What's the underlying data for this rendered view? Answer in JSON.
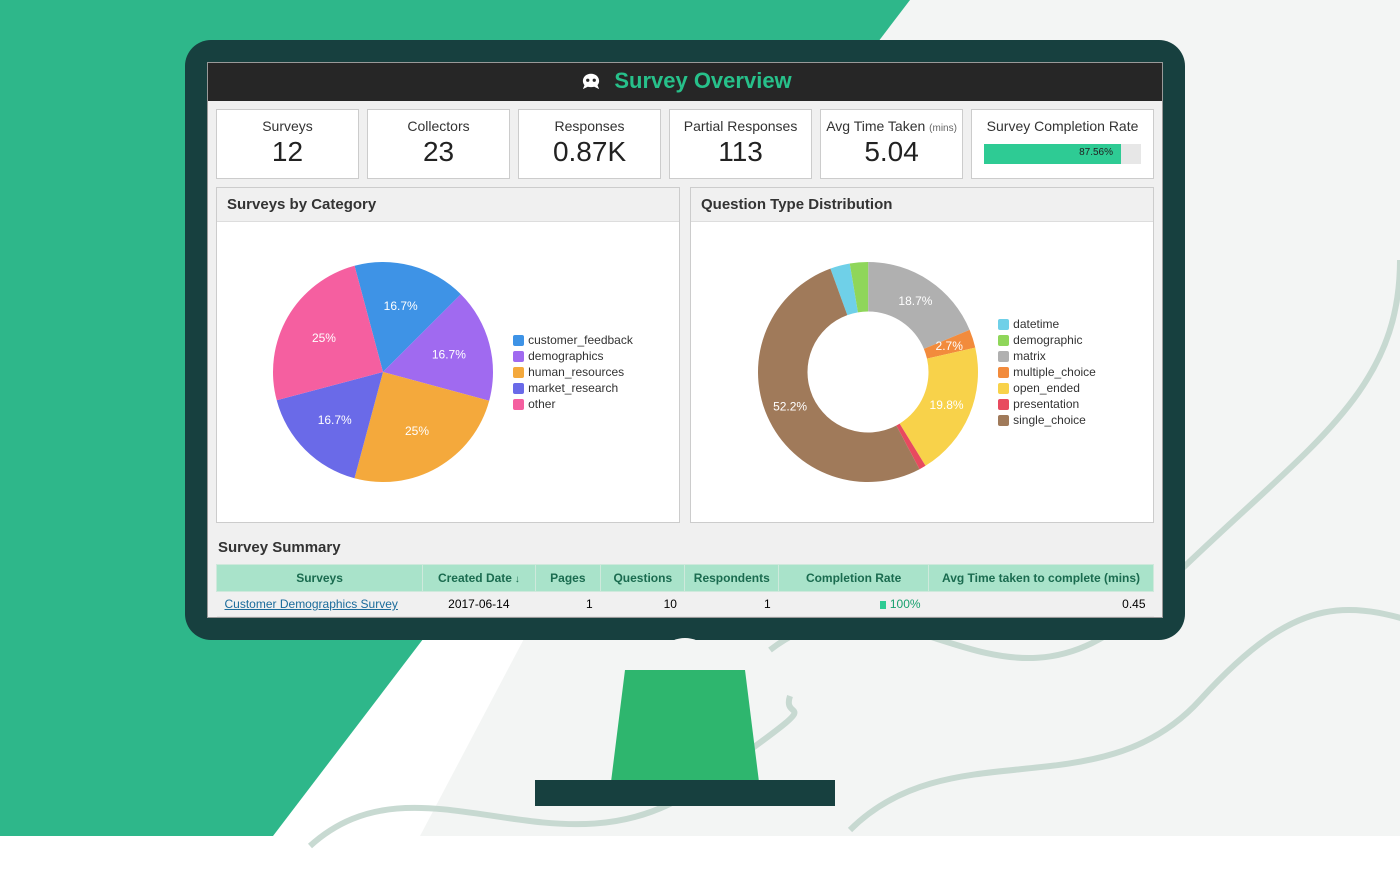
{
  "header": {
    "title": "Survey Overview",
    "icon": "monkey-logo",
    "title_color": "#27c08a",
    "bar_bg": "#262626"
  },
  "kpis": {
    "surveys": {
      "label": "Surveys",
      "value": "12"
    },
    "collectors": {
      "label": "Collectors",
      "value": "23"
    },
    "responses": {
      "label": "Responses",
      "value": "0.87K"
    },
    "partial": {
      "label": "Partial Responses",
      "value": "113"
    },
    "avg_time": {
      "label": "Avg Time Taken",
      "sublabel": "(mins)",
      "value": "5.04"
    },
    "completion": {
      "label": "Survey Completion Rate",
      "pct_text": "87.56%",
      "pct": 87.56,
      "fill_color": "#2ecb94",
      "track_color": "#e7e7e7"
    }
  },
  "pie": {
    "title": "Surveys by Category",
    "type": "pie",
    "label_color": "#ffffff",
    "label_fontsize": 12,
    "slices": [
      {
        "name": "customer_feedback",
        "pct": 16.7,
        "color": "#3e93e6",
        "label": "16.7%"
      },
      {
        "name": "demographics",
        "pct": 16.7,
        "color": "#a06af0",
        "label": "16.7%"
      },
      {
        "name": "human_resources",
        "pct": 25.0,
        "color": "#f4a93c",
        "label": "25%"
      },
      {
        "name": "market_research",
        "pct": 16.7,
        "color": "#6a6ae8",
        "label": "16.7%"
      },
      {
        "name": "other",
        "pct": 25.0,
        "color": "#f55fa0",
        "label": "25%"
      }
    ]
  },
  "donut": {
    "title": "Question Type Distribution",
    "type": "donut",
    "inner_radius_ratio": 0.55,
    "label_color": "#ffffff",
    "label_fontsize": 12,
    "slices": [
      {
        "name": "datetime",
        "pct": 2.9,
        "color": "#6fd0e8",
        "label": ""
      },
      {
        "name": "demographic",
        "pct": 2.7,
        "color": "#8fd65a",
        "label": ""
      },
      {
        "name": "matrix",
        "pct": 18.7,
        "color": "#b0b0b0",
        "label": "18.7%"
      },
      {
        "name": "multiple_choice",
        "pct": 2.7,
        "color": "#f28b3c",
        "label": "2.7%"
      },
      {
        "name": "open_ended",
        "pct": 19.8,
        "color": "#f8d24a",
        "label": "19.8%"
      },
      {
        "name": "presentation",
        "pct": 1.0,
        "color": "#e84a5f",
        "label": ""
      },
      {
        "name": "single_choice",
        "pct": 52.2,
        "color": "#a07a5a",
        "label": "52.2%"
      }
    ]
  },
  "summary": {
    "title": "Survey Summary",
    "header_bg": "#a9e3ca",
    "header_color": "#1a6b4f",
    "columns": [
      {
        "key": "surveys",
        "label": "Surveys",
        "align": "center",
        "width": "22%"
      },
      {
        "key": "created_date",
        "label": "Created Date",
        "align": "center",
        "width": "12%",
        "sort": "desc"
      },
      {
        "key": "pages",
        "label": "Pages",
        "align": "right",
        "width": "7%"
      },
      {
        "key": "questions",
        "label": "Questions",
        "align": "right",
        "width": "9%"
      },
      {
        "key": "respondents",
        "label": "Respondents",
        "align": "right",
        "width": "10%"
      },
      {
        "key": "completion",
        "label": "Completion Rate",
        "align": "right",
        "width": "16%"
      },
      {
        "key": "avg_time",
        "label": "Avg Time taken to complete (mins)",
        "align": "right",
        "width": "24%"
      }
    ],
    "rows": [
      {
        "surveys": "Customer Demographics Survey",
        "created_date": "2017-06-14",
        "pages": "1",
        "questions": "10",
        "respondents": "1",
        "completion_pct": 100,
        "completion_text": "100%",
        "avg_time": "0.45"
      }
    ]
  },
  "colors": {
    "bg_teal": "#2eb78a",
    "bg_offwhite": "#f3f5f4",
    "squiggle": "#c3d6ce",
    "bezel": "#17403f",
    "stand": "#2eb66e",
    "panel_border": "#cccccc"
  }
}
